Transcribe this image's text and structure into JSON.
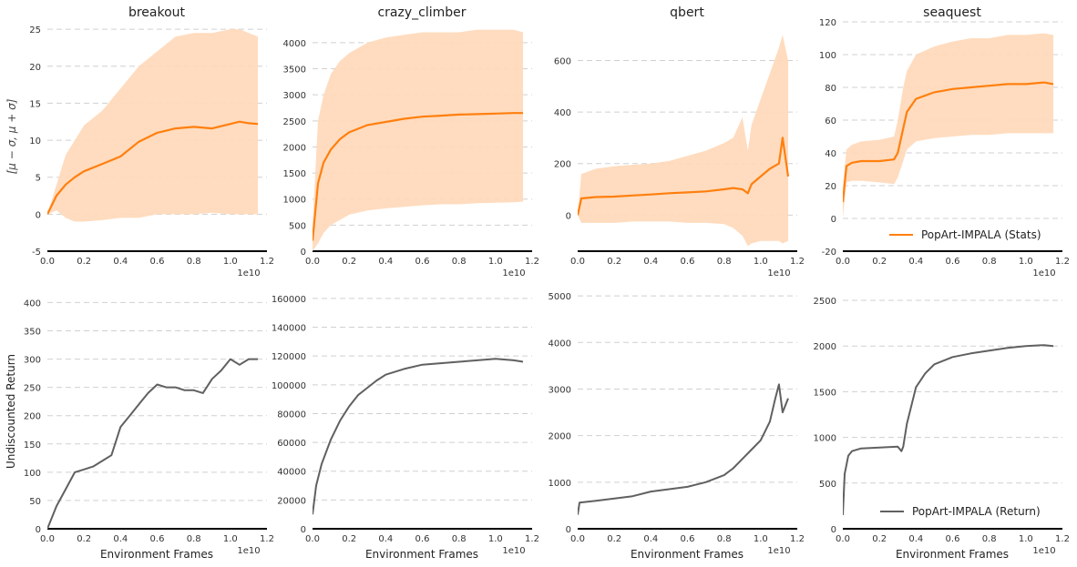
{
  "figure": {
    "top_ylabel": "[μ − σ, μ + σ]",
    "bottom_ylabel": "Undiscounted Return",
    "xlabel": "Environment Frames",
    "x_exponent": "1e10",
    "x_ticks": [
      "0.0",
      "0.2",
      "0.4",
      "0.6",
      "0.8",
      "1.0",
      "1.2"
    ],
    "legend_stats": "PopArt-IMPALA (Stats)",
    "legend_return": "PopArt-IMPALA (Return)"
  },
  "colors": {
    "stats_line": "#ff7f0e",
    "stats_band": "#ffd8b8",
    "return_line": "#606060",
    "grid": "#d0d0d0",
    "axis": "#000000"
  },
  "chart_data": [
    {
      "type": "line",
      "game": "breakout",
      "title": "breakout",
      "row": "stats",
      "xlim": [
        0,
        1.2
      ],
      "ylim": [
        -5,
        26
      ],
      "yticks": [
        -5,
        0,
        5,
        10,
        15,
        20,
        25
      ],
      "series": [
        {
          "name": "mean",
          "x": [
            0,
            0.05,
            0.1,
            0.15,
            0.2,
            0.3,
            0.4,
            0.5,
            0.6,
            0.7,
            0.8,
            0.9,
            1.0,
            1.05,
            1.1,
            1.15
          ],
          "y": [
            0,
            2.5,
            4,
            5,
            5.8,
            6.8,
            7.8,
            9.8,
            11,
            11.6,
            11.8,
            11.6,
            12.2,
            12.5,
            12.3,
            12.2
          ]
        },
        {
          "name": "upper",
          "x": [
            0,
            0.05,
            0.1,
            0.15,
            0.2,
            0.3,
            0.4,
            0.5,
            0.6,
            0.7,
            0.8,
            0.9,
            1.0,
            1.05,
            1.1,
            1.15
          ],
          "y": [
            0,
            4,
            8,
            10,
            12,
            14,
            17,
            20,
            22,
            24,
            24.5,
            24.5,
            25,
            25,
            24.5,
            24
          ]
        },
        {
          "name": "lower",
          "x": [
            0,
            0.05,
            0.1,
            0.15,
            0.2,
            0.3,
            0.4,
            0.5,
            0.6,
            0.7,
            0.8,
            0.9,
            1.0,
            1.05,
            1.1,
            1.15
          ],
          "y": [
            0,
            0.5,
            -0.5,
            -1,
            -1,
            -0.8,
            -0.5,
            -0.5,
            0,
            0,
            0,
            0.2,
            0,
            0,
            0,
            0
          ]
        }
      ]
    },
    {
      "type": "line",
      "game": "crazy_climber",
      "title": "crazy_climber",
      "row": "stats",
      "xlim": [
        0,
        1.2
      ],
      "ylim": [
        0,
        4400
      ],
      "yticks": [
        0,
        500,
        1000,
        1500,
        2000,
        2500,
        3000,
        3500,
        4000
      ],
      "series": [
        {
          "name": "mean",
          "x": [
            0,
            0.03,
            0.06,
            0.1,
            0.15,
            0.2,
            0.3,
            0.4,
            0.5,
            0.6,
            0.7,
            0.8,
            0.9,
            1.0,
            1.1,
            1.15
          ],
          "y": [
            200,
            1300,
            1700,
            1950,
            2150,
            2280,
            2420,
            2480,
            2540,
            2580,
            2600,
            2620,
            2630,
            2640,
            2650,
            2650
          ]
        },
        {
          "name": "upper",
          "x": [
            0,
            0.03,
            0.06,
            0.1,
            0.15,
            0.2,
            0.3,
            0.4,
            0.5,
            0.6,
            0.7,
            0.8,
            0.9,
            1.0,
            1.1,
            1.15
          ],
          "y": [
            500,
            2500,
            3000,
            3400,
            3650,
            3800,
            4000,
            4100,
            4150,
            4200,
            4200,
            4200,
            4250,
            4250,
            4250,
            4200
          ]
        },
        {
          "name": "lower",
          "x": [
            0,
            0.03,
            0.06,
            0.1,
            0.15,
            0.2,
            0.3,
            0.4,
            0.5,
            0.6,
            0.7,
            0.8,
            0.9,
            1.0,
            1.1,
            1.15
          ],
          "y": [
            0,
            150,
            350,
            500,
            600,
            700,
            780,
            820,
            850,
            880,
            900,
            900,
            920,
            930,
            940,
            950
          ]
        }
      ]
    },
    {
      "type": "line",
      "game": "qbert",
      "title": "qbert",
      "row": "stats",
      "xlim": [
        0,
        1.2
      ],
      "ylim": [
        -140,
        750
      ],
      "yticks": [
        0,
        200,
        400,
        600
      ],
      "series": [
        {
          "name": "mean",
          "x": [
            0,
            0.02,
            0.1,
            0.2,
            0.3,
            0.4,
            0.5,
            0.6,
            0.7,
            0.8,
            0.85,
            0.9,
            0.93,
            0.95,
            1.0,
            1.05,
            1.1,
            1.12,
            1.15
          ],
          "y": [
            0,
            65,
            70,
            72,
            76,
            80,
            85,
            88,
            92,
            100,
            105,
            100,
            85,
            120,
            150,
            180,
            200,
            300,
            150
          ]
        },
        {
          "name": "upper",
          "x": [
            0,
            0.02,
            0.1,
            0.2,
            0.3,
            0.4,
            0.5,
            0.6,
            0.7,
            0.8,
            0.85,
            0.9,
            0.93,
            0.95,
            1.0,
            1.05,
            1.1,
            1.12,
            1.15
          ],
          "y": [
            0,
            160,
            180,
            190,
            195,
            200,
            210,
            230,
            250,
            280,
            300,
            380,
            250,
            350,
            450,
            550,
            650,
            700,
            600
          ]
        },
        {
          "name": "lower",
          "x": [
            0,
            0.02,
            0.1,
            0.2,
            0.3,
            0.4,
            0.5,
            0.6,
            0.7,
            0.8,
            0.85,
            0.9,
            0.93,
            0.95,
            1.0,
            1.05,
            1.1,
            1.12,
            1.15
          ],
          "y": [
            0,
            -30,
            -30,
            -30,
            -25,
            -25,
            -25,
            -30,
            -30,
            -35,
            -50,
            -80,
            -120,
            -110,
            -100,
            -100,
            -100,
            -110,
            -100
          ]
        }
      ]
    },
    {
      "type": "line",
      "game": "seaquest",
      "title": "seaquest",
      "row": "stats",
      "xlim": [
        0,
        1.2
      ],
      "ylim": [
        -20,
        120
      ],
      "yticks": [
        -20,
        0,
        20,
        40,
        60,
        80,
        100,
        120
      ],
      "series": [
        {
          "name": "mean",
          "x": [
            0,
            0.02,
            0.05,
            0.1,
            0.2,
            0.28,
            0.3,
            0.33,
            0.35,
            0.4,
            0.5,
            0.6,
            0.7,
            0.8,
            0.9,
            1.0,
            1.1,
            1.15
          ],
          "y": [
            10,
            32,
            34,
            35,
            35,
            36,
            40,
            55,
            65,
            73,
            77,
            79,
            80,
            81,
            82,
            82,
            83,
            82
          ]
        },
        {
          "name": "upper",
          "x": [
            0,
            0.02,
            0.05,
            0.1,
            0.2,
            0.28,
            0.3,
            0.33,
            0.35,
            0.4,
            0.5,
            0.6,
            0.7,
            0.8,
            0.9,
            1.0,
            1.1,
            1.15
          ],
          "y": [
            20,
            42,
            45,
            47,
            48,
            50,
            60,
            80,
            90,
            100,
            105,
            108,
            110,
            110,
            112,
            112,
            113,
            112
          ]
        },
        {
          "name": "lower",
          "x": [
            0,
            0.02,
            0.05,
            0.1,
            0.2,
            0.28,
            0.3,
            0.33,
            0.35,
            0.4,
            0.5,
            0.6,
            0.7,
            0.8,
            0.9,
            1.0,
            1.1,
            1.15
          ],
          "y": [
            0,
            22,
            23,
            23,
            22,
            21,
            25,
            35,
            42,
            47,
            49,
            50,
            51,
            51,
            52,
            52,
            52,
            52
          ]
        }
      ]
    },
    {
      "type": "line",
      "game": "breakout",
      "title": "",
      "row": "return",
      "xlim": [
        0,
        1.2
      ],
      "ylim": [
        0,
        420
      ],
      "yticks": [
        0,
        50,
        100,
        150,
        200,
        250,
        300,
        350,
        400
      ],
      "series": [
        {
          "name": "PopArt-IMPALA (Return)",
          "x": [
            0,
            0.05,
            0.1,
            0.15,
            0.2,
            0.25,
            0.3,
            0.35,
            0.4,
            0.45,
            0.5,
            0.55,
            0.6,
            0.65,
            0.7,
            0.75,
            0.8,
            0.85,
            0.9,
            0.95,
            1.0,
            1.05,
            1.1,
            1.15
          ],
          "y": [
            0,
            40,
            70,
            100,
            105,
            110,
            120,
            130,
            180,
            200,
            220,
            240,
            255,
            250,
            250,
            245,
            245,
            240,
            265,
            280,
            300,
            290,
            300,
            300
          ]
        }
      ]
    },
    {
      "type": "line",
      "game": "crazy_climber",
      "title": "",
      "row": "return",
      "xlim": [
        0,
        1.2
      ],
      "ylim": [
        0,
        165000
      ],
      "yticks": [
        0,
        20000,
        40000,
        60000,
        80000,
        100000,
        120000,
        140000,
        160000
      ],
      "series": [
        {
          "name": "PopArt-IMPALA (Return)",
          "x": [
            0,
            0.02,
            0.05,
            0.1,
            0.15,
            0.2,
            0.25,
            0.3,
            0.35,
            0.4,
            0.5,
            0.6,
            0.7,
            0.8,
            0.9,
            1.0,
            1.1,
            1.15
          ],
          "y": [
            10000,
            30000,
            45000,
            62000,
            75000,
            85000,
            93000,
            98000,
            103000,
            107000,
            111000,
            114000,
            115000,
            116000,
            117000,
            118000,
            117000,
            116000
          ]
        }
      ]
    },
    {
      "type": "line",
      "game": "qbert",
      "title": "",
      "row": "return",
      "xlim": [
        0,
        1.2
      ],
      "ylim": [
        0,
        5100
      ],
      "yticks": [
        0,
        1000,
        2000,
        3000,
        4000,
        5000
      ],
      "series": [
        {
          "name": "PopArt-IMPALA (Return)",
          "x": [
            0,
            0.01,
            0.1,
            0.2,
            0.3,
            0.4,
            0.5,
            0.6,
            0.7,
            0.8,
            0.85,
            0.9,
            0.95,
            1.0,
            1.05,
            1.08,
            1.1,
            1.12,
            1.15
          ],
          "y": [
            300,
            560,
            600,
            650,
            700,
            800,
            850,
            900,
            1000,
            1150,
            1300,
            1500,
            1700,
            1900,
            2300,
            2800,
            3100,
            2500,
            2800
          ]
        }
      ]
    },
    {
      "type": "line",
      "game": "seaquest",
      "title": "",
      "row": "return",
      "xlim": [
        0,
        1.2
      ],
      "ylim": [
        0,
        2600
      ],
      "yticks": [
        0,
        500,
        1000,
        1500,
        2000,
        2500
      ],
      "series": [
        {
          "name": "PopArt-IMPALA (Return)",
          "x": [
            0,
            0.01,
            0.03,
            0.05,
            0.1,
            0.2,
            0.3,
            0.32,
            0.33,
            0.35,
            0.4,
            0.45,
            0.5,
            0.6,
            0.7,
            0.8,
            0.9,
            1.0,
            1.1,
            1.15
          ],
          "y": [
            150,
            600,
            800,
            850,
            880,
            890,
            900,
            850,
            900,
            1150,
            1550,
            1700,
            1800,
            1880,
            1920,
            1950,
            1980,
            2000,
            2010,
            2000
          ]
        }
      ]
    }
  ]
}
